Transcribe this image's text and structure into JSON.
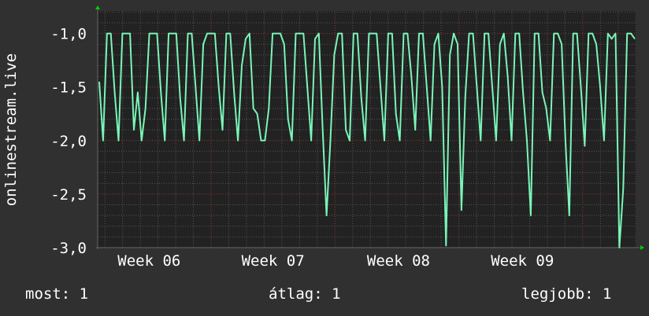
{
  "chart_data": {
    "type": "line",
    "title": "",
    "ylabel": "onlinestream.live",
    "xlabel": "",
    "ylim": [
      -3.0,
      -0.79
    ],
    "yticks": [
      -1.0,
      -1.5,
      -2.0,
      -2.5,
      -3.0
    ],
    "ytick_labels": [
      "-1,0",
      "-1,5",
      "-2,0",
      "-2,5",
      "-3,0"
    ],
    "xtick_labels": [
      "Week 06",
      "Week 07",
      "Week 08",
      "Week 09"
    ],
    "grid": true,
    "series": [
      {
        "color": "#7af5b8",
        "values": [
          -1.45,
          -2,
          -1,
          -1,
          -1.55,
          -2,
          -1,
          -1,
          -1,
          -1.9,
          -1.55,
          -2,
          -1.7,
          -1,
          -1,
          -1,
          -1.55,
          -2,
          -1,
          -1,
          -1,
          -1.6,
          -2,
          -1,
          -1,
          -1.5,
          -2,
          -1.1,
          -1,
          -1,
          -1,
          -1.5,
          -1.9,
          -1,
          -1,
          -1.55,
          -2,
          -1.3,
          -1.05,
          -1,
          -1.7,
          -1.75,
          -2,
          -2,
          -1.7,
          -1,
          -1,
          -1,
          -1.1,
          -1.8,
          -2,
          -1,
          -1,
          -1,
          -1.5,
          -2,
          -1.05,
          -1,
          -1.9,
          -2.7,
          -2.0,
          -1.2,
          -1,
          -1,
          -1.9,
          -2,
          -1,
          -1,
          -1.6,
          -2,
          -1,
          -1,
          -1,
          -1.5,
          -2,
          -1,
          -1,
          -1.75,
          -2,
          -1,
          -1,
          -1.4,
          -1.9,
          -1,
          -1,
          -1.5,
          -2,
          -1.1,
          -1,
          -1.5,
          -2.98,
          -1.2,
          -1,
          -1.1,
          -2.65,
          -1.6,
          -1,
          -1,
          -1.5,
          -2,
          -1,
          -1,
          -1.5,
          -2,
          -1.1,
          -1,
          -1.4,
          -2,
          -1,
          -1,
          -1.55,
          -2,
          -2.7,
          -1,
          -1,
          -1.55,
          -1.7,
          -2,
          -1,
          -1,
          -1.1,
          -2,
          -2.7,
          -1,
          -1,
          -1.5,
          -2.05,
          -1,
          -1,
          -1.1,
          -1.5,
          -2,
          -1,
          -1.05,
          -1,
          -3.0,
          -2.45,
          -1,
          -1,
          -1.05
        ]
      }
    ]
  },
  "legend": {
    "current": "most: 1",
    "average": "átlag: 1",
    "max": "legjobb: 1"
  },
  "colors": {
    "background": "#303030",
    "plot": "#222222",
    "line": "#7af5b8",
    "major_grid": "#8a3a3a",
    "arrow": "#00d000"
  }
}
